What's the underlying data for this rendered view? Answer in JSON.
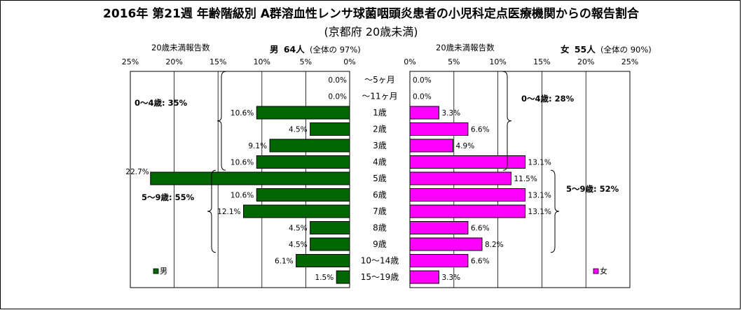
{
  "title": "2016年 第21週 年齢階級別 A群溶血性レンサ球菌咽頭炎患者の小児科定点医療機関からの報告割合",
  "subtitle": "(京都府 20歳未満)",
  "colors": {
    "male": "#006600",
    "female": "#ff00ff",
    "border": "#000000"
  },
  "panels": {
    "male": {
      "caption": "20歳未満報告数",
      "sex_label": "男",
      "count": "64人",
      "share": "(全体の 97%)",
      "legend": "男",
      "group_labels": [
        "0～4歳: 35%",
        "5～9歳: 55%"
      ]
    },
    "female": {
      "caption": "20歳未満報告数",
      "sex_label": "女",
      "count": "55人",
      "share": "(全体の 90%)",
      "legend": "女",
      "group_labels": [
        "0～4歳: 28%",
        "5～9歳: 52%"
      ]
    }
  },
  "chart_data": {
    "type": "bar",
    "orientation": "horizontal population pyramid",
    "categories": [
      "～5ヶ月",
      "～11ヶ月",
      "1歳",
      "2歳",
      "3歳",
      "4歳",
      "5歳",
      "6歳",
      "7歳",
      "8歳",
      "9歳",
      "10～14歳",
      "15～19歳"
    ],
    "series": [
      {
        "name": "男",
        "values": [
          0.0,
          0.0,
          10.6,
          4.5,
          9.1,
          10.6,
          22.7,
          10.6,
          12.1,
          4.5,
          4.5,
          6.1,
          1.5
        ],
        "labels": [
          "0.0%",
          "0.0%",
          "10.6%",
          "4.5%",
          "9.1%",
          "10.6%",
          "22.7%",
          "10.6%",
          "12.1%",
          "4.5%",
          "4.5%",
          "6.1%",
          "1.5%"
        ]
      },
      {
        "name": "女",
        "values": [
          0.0,
          0.0,
          3.3,
          6.6,
          4.9,
          13.1,
          11.5,
          13.1,
          13.1,
          6.6,
          8.2,
          6.6,
          3.3
        ],
        "labels": [
          "0.0%",
          "0.0%",
          "3.3%",
          "6.6%",
          "4.9%",
          "13.1%",
          "11.5%",
          "13.1%",
          "13.1%",
          "6.6%",
          "8.2%",
          "6.6%",
          "3.3%"
        ]
      }
    ],
    "xlim": [
      0,
      25
    ],
    "xticks": [
      "25%",
      "20%",
      "15%",
      "10%",
      "5%",
      "0%"
    ],
    "xticks_right": [
      "0%",
      "5%",
      "10%",
      "15%",
      "20%",
      "25%"
    ],
    "grid": true,
    "legend": "bottom-left / bottom-right"
  }
}
